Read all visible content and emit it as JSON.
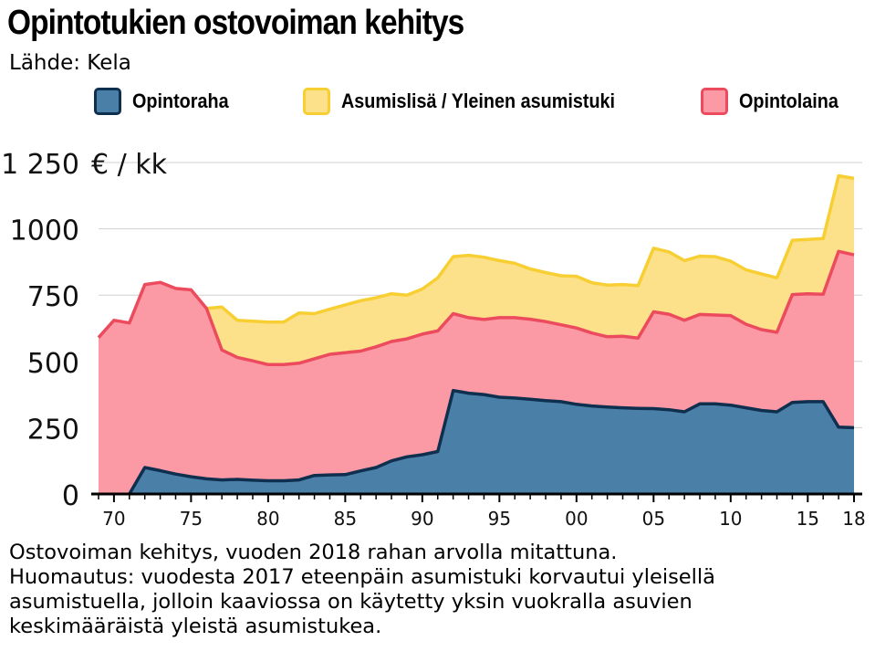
{
  "header": {
    "title": "Opintotukien ostovoiman kehitys",
    "source": "Lähde: Kela"
  },
  "legend": [
    {
      "label": "Opintoraha",
      "fill": "#4a7fa8",
      "stroke": "#0f2f4f"
    },
    {
      "label": "Asumislisä / Yleinen asumistuki",
      "fill": "#fce18a",
      "stroke": "#f7cf32"
    },
    {
      "label": "Opintolaina",
      "fill": "#fb9aa5",
      "stroke": "#ec4b5d"
    }
  ],
  "notes": [
    "Ostovoiman kehitys, vuoden 2018 rahan arvolla mitattuna.",
    "Huomautus: vuodesta 2017 eteenpäin asumistuki korvautui yleisellä",
    "asumistuella, jolloin kaaviossa on käytetty yksin vuokralla asuvien",
    "keskimääräistä yleistä asumistukea."
  ],
  "chart_data": {
    "type": "area",
    "stacked": true,
    "unit_label": "€ / kk",
    "ylim": [
      0,
      1250
    ],
    "yticks": [
      0,
      250,
      500,
      750,
      1000,
      1250
    ],
    "ytick_labels": [
      "0",
      "250",
      "500",
      "750",
      "1000",
      "1 250"
    ],
    "xticks": [
      1970,
      1975,
      1980,
      1985,
      1990,
      1995,
      2000,
      2005,
      2010,
      2015,
      2018
    ],
    "xtick_labels": [
      "70",
      "75",
      "80",
      "85",
      "90",
      "95",
      "00",
      "05",
      "10",
      "15",
      "18"
    ],
    "grid": true,
    "x": [
      1969,
      1970,
      1971,
      1972,
      1973,
      1974,
      1975,
      1976,
      1977,
      1978,
      1979,
      1980,
      1981,
      1982,
      1983,
      1984,
      1985,
      1986,
      1987,
      1988,
      1989,
      1990,
      1991,
      1992,
      1993,
      1994,
      1995,
      1996,
      1997,
      1998,
      1999,
      2000,
      2001,
      2002,
      2003,
      2004,
      2005,
      2006,
      2007,
      2008,
      2009,
      2010,
      2011,
      2012,
      2013,
      2014,
      2015,
      2016,
      2017,
      2018
    ],
    "series": [
      {
        "name": "Opintoraha",
        "values": [
          0,
          0,
          0,
          100,
          88,
          75,
          65,
          57,
          53,
          55,
          52,
          50,
          50,
          53,
          70,
          72,
          73,
          87,
          100,
          125,
          140,
          148,
          160,
          390,
          380,
          375,
          365,
          362,
          357,
          352,
          348,
          338,
          332,
          328,
          325,
          323,
          322,
          318,
          310,
          340,
          340,
          335,
          325,
          315,
          310,
          345,
          348,
          348,
          252,
          250
        ]
      },
      {
        "name": "Opintolaina",
        "values": [
          590,
          655,
          645,
          690,
          710,
          700,
          705,
          643,
          490,
          460,
          450,
          438,
          438,
          440,
          440,
          455,
          460,
          452,
          455,
          450,
          445,
          455,
          455,
          290,
          285,
          283,
          300,
          303,
          302,
          298,
          290,
          288,
          275,
          265,
          270,
          265,
          365,
          360,
          345,
          337,
          335,
          338,
          315,
          305,
          300,
          407,
          407,
          405,
          663,
          652
        ]
      },
      {
        "name": "Asumislisä / Yleinen asumistuki",
        "values": [
          0,
          0,
          0,
          0,
          0,
          0,
          0,
          0,
          162,
          140,
          150,
          160,
          160,
          190,
          170,
          170,
          180,
          190,
          185,
          180,
          165,
          170,
          200,
          215,
          235,
          235,
          215,
          205,
          190,
          185,
          185,
          195,
          190,
          195,
          195,
          198,
          240,
          235,
          225,
          220,
          220,
          205,
          205,
          210,
          205,
          205,
          205,
          210,
          285,
          288
        ]
      }
    ]
  }
}
